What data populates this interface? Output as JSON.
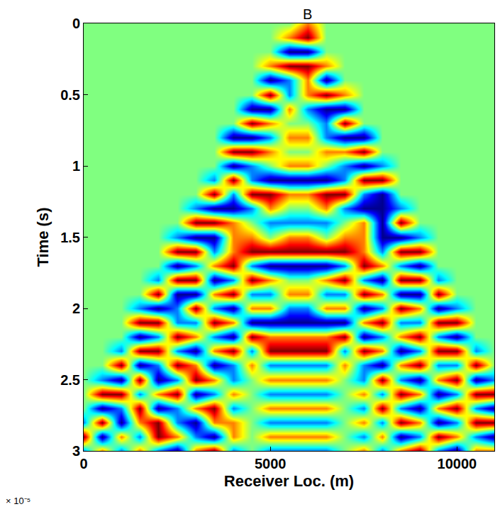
{
  "chart_data": {
    "type": "heatmap",
    "xlabel": "Receiver Loc. (m)",
    "ylabel": "Time (s)",
    "annotations": [
      {
        "text": "B"
      },
      {
        "text": "× 10⁻⁵"
      }
    ],
    "xlim": [
      0,
      11000
    ],
    "ylim": [
      3,
      0
    ],
    "xticks": [
      0,
      5000,
      10000
    ],
    "yticks": [
      0,
      0.5,
      1,
      1.5,
      2,
      2.5,
      3
    ],
    "zlim": [
      -2,
      2
    ],
    "x": [
      0,
      500,
      1000,
      1500,
      2000,
      2500,
      3000,
      3500,
      4000,
      4500,
      5000,
      5500,
      6000,
      6500,
      7000,
      7500,
      8000,
      8500,
      9000,
      9500,
      10000,
      10500,
      11000
    ],
    "y": [
      0,
      0.1,
      0.2,
      0.3,
      0.4,
      0.5,
      0.6,
      0.7,
      0.8,
      0.9,
      1.0,
      1.1,
      1.2,
      1.3,
      1.4,
      1.5,
      1.6,
      1.7,
      1.8,
      1.9,
      2.0,
      2.1,
      2.2,
      2.3,
      2.4,
      2.5,
      2.6,
      2.7,
      2.8,
      2.9,
      3.0
    ],
    "z": [
      [
        0,
        0,
        0,
        0,
        0,
        0,
        0,
        0,
        0,
        0,
        0,
        0,
        1,
        0,
        0,
        0,
        0,
        0,
        0,
        0,
        0,
        0,
        0
      ],
      [
        0,
        0,
        0,
        0,
        0,
        0,
        0,
        0,
        0,
        0,
        0,
        1,
        2,
        0,
        0,
        0,
        0,
        0,
        0,
        0,
        0,
        0,
        0
      ],
      [
        0,
        0,
        0,
        0,
        0,
        0,
        0,
        0,
        0,
        0,
        0,
        -2,
        -2,
        0,
        0,
        0,
        0,
        0,
        0,
        0,
        0,
        0,
        0
      ],
      [
        0,
        0,
        0,
        0,
        0,
        0,
        0,
        0,
        0,
        0,
        1,
        2,
        2,
        1,
        0,
        0,
        0,
        0,
        0,
        0,
        0,
        0,
        0
      ],
      [
        0,
        0,
        0,
        0,
        0,
        0,
        0,
        0,
        0,
        0,
        -2,
        -1,
        1,
        -2,
        0,
        0,
        0,
        0,
        0,
        0,
        0,
        0,
        0
      ],
      [
        0,
        0,
        0,
        0,
        0,
        0,
        0,
        0,
        0,
        0,
        2,
        -1,
        1,
        2,
        1,
        0,
        0,
        0,
        0,
        0,
        0,
        0,
        0
      ],
      [
        0,
        0,
        0,
        0,
        0,
        0,
        0,
        0,
        0,
        -2,
        -2,
        1,
        -1,
        -2,
        -2,
        0,
        0,
        0,
        0,
        0,
        0,
        0,
        0
      ],
      [
        0,
        0,
        0,
        0,
        0,
        0,
        0,
        0,
        0,
        2,
        1,
        0,
        0,
        -1,
        2,
        0,
        0,
        0,
        0,
        0,
        0,
        0,
        0
      ],
      [
        0,
        0,
        0,
        0,
        0,
        0,
        0,
        0,
        -2,
        -2,
        -1,
        1,
        1,
        -1,
        -2,
        -2,
        0,
        0,
        0,
        0,
        0,
        0,
        0
      ],
      [
        0,
        0,
        0,
        0,
        0,
        0,
        0,
        0,
        2,
        2,
        1,
        0,
        0,
        1,
        1,
        2,
        0,
        0,
        0,
        0,
        0,
        0,
        0
      ],
      [
        0,
        0,
        0,
        0,
        0,
        0,
        0,
        0,
        -2,
        -1,
        0,
        1,
        1,
        0,
        -1,
        -2,
        -1,
        0,
        0,
        0,
        0,
        0,
        0
      ],
      [
        0,
        0,
        0,
        0,
        0,
        0,
        0,
        -1,
        2,
        -1,
        -2,
        -2,
        -2,
        -2,
        -1,
        2,
        2,
        0,
        0,
        0,
        0,
        0,
        0
      ],
      [
        0,
        0,
        0,
        0,
        0,
        0,
        0,
        2,
        -1,
        2,
        2,
        1,
        1,
        2,
        2,
        -1,
        -2,
        0,
        0,
        0,
        0,
        0,
        0
      ],
      [
        0,
        0,
        0,
        0,
        0,
        0,
        -1,
        -2,
        -2,
        -1,
        1,
        0,
        0,
        1,
        -1,
        -2,
        -2,
        -1,
        0,
        0,
        0,
        0,
        0
      ],
      [
        0,
        0,
        0,
        0,
        0,
        0,
        2,
        2,
        1,
        0,
        -1,
        -1,
        -1,
        -1,
        0,
        1,
        -2,
        2,
        0,
        0,
        0,
        0,
        0
      ],
      [
        0,
        0,
        0,
        0,
        0,
        -1,
        -2,
        -2,
        1,
        1,
        0,
        1,
        1,
        0,
        1,
        1,
        -2,
        -2,
        -1,
        0,
        0,
        0,
        0
      ],
      [
        0,
        0,
        0,
        0,
        0,
        2,
        2,
        -1,
        1,
        2,
        2,
        2,
        2,
        2,
        2,
        1,
        -1,
        2,
        2,
        0,
        0,
        0,
        0
      ],
      [
        0,
        0,
        0,
        0,
        0,
        -2,
        -1,
        1,
        2,
        -1,
        -2,
        -2,
        -2,
        -2,
        -1,
        2,
        1,
        -1,
        -2,
        0,
        0,
        0,
        0
      ],
      [
        0,
        0,
        0,
        0,
        -1,
        2,
        2,
        -2,
        -1,
        2,
        1,
        0,
        0,
        1,
        2,
        -1,
        -2,
        2,
        2,
        -1,
        0,
        0,
        0
      ],
      [
        0,
        0,
        0,
        0,
        2,
        -2,
        -2,
        1,
        2,
        -1,
        -1,
        1,
        1,
        -1,
        -1,
        2,
        1,
        -2,
        -2,
        2,
        0,
        0,
        0
      ],
      [
        0,
        0,
        0,
        -1,
        -2,
        -1,
        2,
        -1,
        -2,
        1,
        1,
        -1,
        -1,
        1,
        1,
        -2,
        -1,
        2,
        1,
        -2,
        -1,
        0,
        0
      ],
      [
        0,
        0,
        0,
        2,
        2,
        -1,
        -1,
        2,
        1,
        -2,
        -2,
        -2,
        -2,
        -2,
        -2,
        1,
        2,
        -1,
        -1,
        2,
        2,
        0,
        0
      ],
      [
        0,
        0,
        0,
        -2,
        -1,
        2,
        1,
        -1,
        -2,
        2,
        1,
        1,
        1,
        1,
        2,
        -2,
        -1,
        1,
        2,
        -1,
        -2,
        0,
        0
      ],
      [
        0,
        0,
        -1,
        2,
        2,
        -1,
        -2,
        1,
        2,
        -1,
        2,
        2,
        2,
        2,
        -1,
        2,
        1,
        -2,
        -1,
        2,
        2,
        -1,
        0
      ],
      [
        0,
        0,
        2,
        -2,
        -1,
        2,
        1,
        -2,
        -1,
        1,
        -1,
        -1,
        -1,
        -1,
        1,
        -1,
        -2,
        1,
        2,
        -1,
        -1,
        2,
        0
      ],
      [
        0,
        -1,
        -2,
        2,
        -2,
        -1,
        2,
        1,
        -1,
        0,
        1,
        1,
        1,
        1,
        0,
        -1,
        2,
        -1,
        -2,
        1,
        2,
        -2,
        -1
      ],
      [
        0,
        2,
        2,
        -1,
        1,
        2,
        -2,
        -1,
        1,
        0,
        -1,
        -1,
        -1,
        -1,
        0,
        1,
        -1,
        2,
        1,
        -2,
        -1,
        2,
        2
      ],
      [
        0,
        -2,
        -1,
        2,
        -2,
        -1,
        1,
        2,
        -1,
        0,
        1,
        1,
        1,
        1,
        0,
        -1,
        2,
        -1,
        -2,
        1,
        2,
        -1,
        -2
      ],
      [
        -1,
        2,
        -2,
        1,
        2,
        -1,
        -2,
        1,
        1,
        0,
        -1,
        -1,
        -1,
        -1,
        0,
        1,
        -1,
        2,
        1,
        -2,
        -1,
        2,
        2
      ],
      [
        2,
        -2,
        1,
        -1,
        2,
        1,
        -1,
        -2,
        1,
        0,
        1,
        1,
        1,
        1,
        0,
        -1,
        1,
        -2,
        -1,
        2,
        1,
        -1,
        -2
      ],
      [
        -1,
        1,
        -1,
        1,
        -1,
        -2,
        1,
        2,
        -1,
        0,
        -1,
        -1,
        -1,
        -1,
        0,
        1,
        -1,
        1,
        2,
        -1,
        -2,
        1,
        1
      ]
    ]
  }
}
